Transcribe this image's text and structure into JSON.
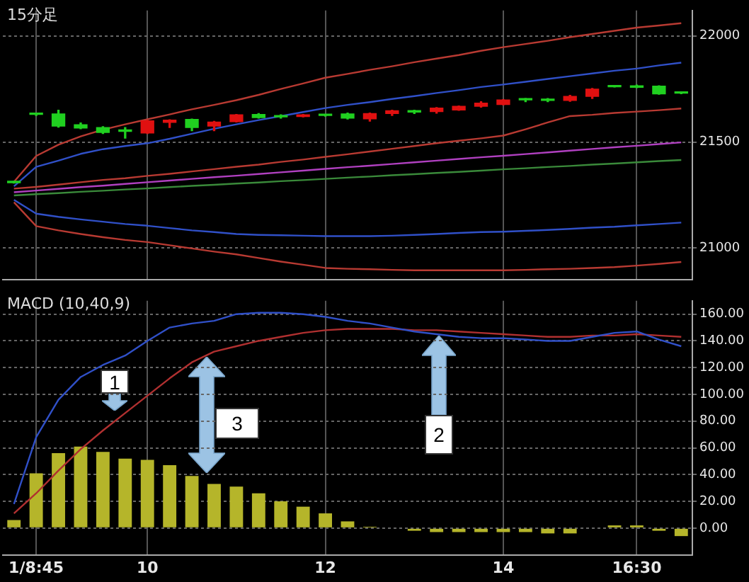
{
  "chart_data": [
    {
      "type": "candlestick",
      "title": "15分足",
      "categories": [
        null,
        null,
        null,
        null,
        null,
        null,
        null,
        null,
        null,
        null,
        null,
        null,
        null,
        null,
        null,
        null,
        null,
        null,
        null,
        null,
        null,
        null,
        null,
        null,
        null,
        null,
        null,
        null,
        null,
        null,
        null
      ],
      "ohlc": [
        [
          21312,
          21314,
          21306,
          21308
        ],
        [
          21630,
          21635,
          21625,
          21632
        ],
        [
          21632,
          21650,
          21570,
          21575
        ],
        [
          21581,
          21590,
          21562,
          21566
        ],
        [
          21568,
          21572,
          21540,
          21545
        ],
        [
          21555,
          21568,
          21518,
          21550
        ],
        [
          21542,
          21602,
          21540,
          21600
        ],
        [
          21592,
          21605,
          21568,
          21603
        ],
        [
          21606,
          21608,
          21553,
          21568
        ],
        [
          21575,
          21597,
          21553,
          21594
        ],
        [
          21596,
          21630,
          21594,
          21628
        ],
        [
          21630,
          21634,
          21612,
          21615
        ],
        [
          21622,
          21628,
          21612,
          21618
        ],
        [
          21620,
          21630,
          21618,
          21628
        ],
        [
          21627,
          21630,
          21622,
          21625
        ],
        [
          21632,
          21636,
          21608,
          21612
        ],
        [
          21609,
          21636,
          21598,
          21634
        ],
        [
          21634,
          21650,
          21625,
          21647
        ],
        [
          21645,
          21650,
          21634,
          21641
        ],
        [
          21643,
          21662,
          21636,
          21660
        ],
        [
          21651,
          21670,
          21649,
          21668
        ],
        [
          21668,
          21690,
          21664,
          21683
        ],
        [
          21677,
          21700,
          21675,
          21698
        ],
        [
          21702,
          21705,
          21690,
          21698
        ],
        [
          21700,
          21705,
          21690,
          21696
        ],
        [
          21696,
          21720,
          21692,
          21715
        ],
        [
          21715,
          21752,
          21705,
          21749
        ],
        [
          21762,
          21763,
          21759,
          21760
        ],
        [
          21765,
          21768,
          21756,
          21758
        ],
        [
          21763,
          21765,
          21725,
          21727
        ],
        [
          21733,
          21735,
          21728,
          21730
        ]
      ],
      "colors": [
        "#20d020",
        "#20d020",
        "#20d020",
        "#20d020",
        "#20d020",
        "#20d020",
        "#e01010",
        "#e01010",
        "#20d020",
        "#e01010",
        "#e01010",
        "#20d020",
        "#20d020",
        "#e01010",
        "#20d020",
        "#20d020",
        "#e01010",
        "#e01010",
        "#20d020",
        "#e01010",
        "#e01010",
        "#e01010",
        "#e01010",
        "#20d020",
        "#20d020",
        "#e01010",
        "#e01010",
        "#20d020",
        "#20d020",
        "#20d020",
        "#20d020"
      ],
      "series": [
        {
          "type": "line",
          "color": "#b83a32",
          "values": [
            21312,
            21434,
            21487,
            21526,
            21558,
            21583,
            21607,
            21630,
            21654,
            21675,
            21697,
            21722,
            21750,
            21776,
            21803,
            21821,
            21840,
            21857,
            21876,
            21893,
            21910,
            21930,
            21947,
            21962,
            21977,
            21994,
            22009,
            22024,
            22039,
            22049,
            22060
          ]
        },
        {
          "type": "line",
          "color": "#3050c8",
          "values": [
            21291,
            21383,
            21412,
            21444,
            21466,
            21481,
            21494,
            21515,
            21539,
            21562,
            21583,
            21603,
            21622,
            21641,
            21660,
            21675,
            21688,
            21703,
            21716,
            21731,
            21744,
            21759,
            21771,
            21784,
            21797,
            21810,
            21823,
            21836,
            21846,
            21861,
            21874
          ]
        },
        {
          "type": "line",
          "color": "#b83a32",
          "values": [
            21280,
            21288,
            21299,
            21310,
            21321,
            21329,
            21340,
            21350,
            21361,
            21372,
            21383,
            21393,
            21406,
            21417,
            21430,
            21442,
            21455,
            21468,
            21481,
            21494,
            21506,
            21517,
            21530,
            21560,
            21592,
            21622,
            21628,
            21637,
            21643,
            21650,
            21658
          ]
        },
        {
          "type": "line",
          "color": "#b040c0",
          "values": [
            21263,
            21271,
            21279,
            21287,
            21294,
            21302,
            21310,
            21318,
            21326,
            21334,
            21341,
            21349,
            21357,
            21365,
            21373,
            21381,
            21388,
            21396,
            21404,
            21412,
            21420,
            21428,
            21435,
            21443,
            21451,
            21459,
            21467,
            21475,
            21482,
            21490,
            21498
          ]
        },
        {
          "type": "line",
          "color": "#3a8a3a",
          "values": [
            21248,
            21254,
            21259,
            21265,
            21270,
            21276,
            21281,
            21287,
            21293,
            21298,
            21304,
            21309,
            21315,
            21320,
            21326,
            21332,
            21337,
            21343,
            21348,
            21354,
            21359,
            21365,
            21371,
            21376,
            21382,
            21387,
            21393,
            21398,
            21404,
            21410,
            21415
          ]
        },
        {
          "type": "line",
          "color": "#3050c8",
          "values": [
            21227,
            21162,
            21147,
            21135,
            21124,
            21113,
            21105,
            21094,
            21083,
            21075,
            21066,
            21062,
            21060,
            21058,
            21056,
            21056,
            21056,
            21058,
            21062,
            21066,
            21071,
            21075,
            21077,
            21081,
            21085,
            21090,
            21096,
            21100,
            21107,
            21113,
            21120
          ]
        },
        {
          "type": "line",
          "color": "#b83a32",
          "values": [
            21216,
            21103,
            21083,
            21066,
            21051,
            21038,
            21028,
            21013,
            20998,
            20983,
            20970,
            20953,
            20936,
            20921,
            20906,
            20902,
            20900,
            20897,
            20895,
            20895,
            20895,
            20895,
            20895,
            20897,
            20900,
            20902,
            20906,
            20910,
            20917,
            20925,
            20934
          ]
        }
      ],
      "ylim": [
        20850,
        22120
      ],
      "yticks": [
        21000,
        21500,
        22000
      ],
      "grid": true,
      "tick_labels": "y"
    },
    {
      "type": "bar",
      "title": "MACD (10,40,9)",
      "categories": [
        null,
        "1/8:45",
        null,
        null,
        null,
        null,
        "10",
        null,
        null,
        null,
        null,
        null,
        null,
        null,
        "12",
        null,
        null,
        null,
        null,
        null,
        null,
        null,
        "14",
        null,
        null,
        null,
        null,
        null,
        "16:30",
        null,
        null
      ],
      "series": [
        {
          "type": "bar",
          "color": "#b5b52a",
          "values": [
            6,
            41,
            56,
            61,
            57,
            52,
            51,
            47,
            39,
            33,
            31,
            26,
            20,
            16,
            11,
            5,
            1,
            0,
            -2,
            -3,
            -3,
            -3,
            -3,
            -3,
            -4,
            -4,
            0,
            2,
            2,
            -2,
            -6
          ]
        },
        {
          "type": "line",
          "color": "#3050c8",
          "values": [
            18,
            68,
            96,
            113,
            122,
            129,
            140,
            150,
            153,
            155,
            160,
            161,
            161,
            160,
            158,
            155,
            153,
            150,
            147,
            145,
            143,
            142,
            142,
            141,
            140,
            140,
            143,
            146,
            147,
            141,
            136
          ]
        },
        {
          "type": "line",
          "color": "#b03030",
          "values": [
            11,
            26,
            43,
            59,
            73,
            86,
            99,
            112,
            124,
            132,
            136,
            140,
            143,
            146,
            148,
            149,
            149,
            149,
            148,
            148,
            147,
            146,
            145,
            144,
            143,
            143,
            144,
            144,
            145,
            144,
            143
          ]
        }
      ],
      "ylim": [
        -20,
        170
      ],
      "yticks": [
        {
          "value": 0,
          "label": "0.00"
        },
        {
          "value": 20,
          "label": "20.00"
        },
        {
          "value": 40,
          "label": "40.00"
        },
        {
          "value": 60,
          "label": "60.00"
        },
        {
          "value": 80,
          "label": "80.00"
        },
        {
          "value": 100,
          "label": "100.00"
        },
        {
          "value": 120,
          "label": "120.00"
        },
        {
          "value": 140,
          "label": "140.00"
        },
        {
          "value": 160,
          "label": "160.00"
        }
      ],
      "grid": true,
      "annotations": [
        "1",
        "2",
        "3"
      ]
    }
  ]
}
